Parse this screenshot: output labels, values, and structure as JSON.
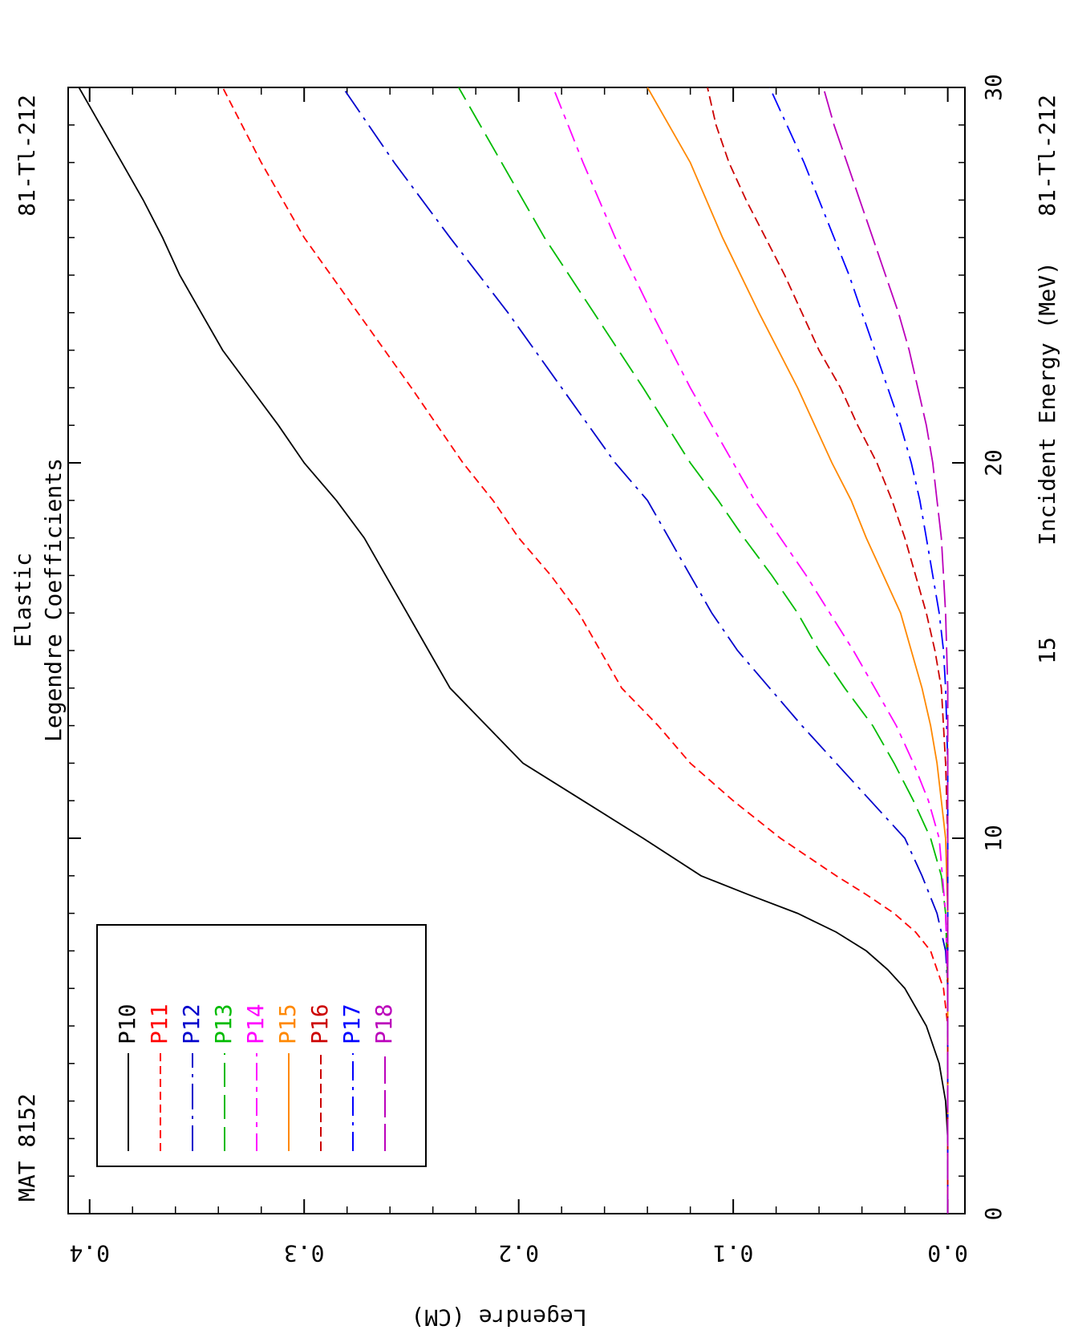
{
  "header": {
    "mat": "MAT 8152",
    "title_line1": "Elastic",
    "title_line2": "Legendre Coefficients",
    "id_left": "81-Tl-212",
    "id_right": "81-Tl-212"
  },
  "chart_data": {
    "type": "line",
    "xlabel": "Incident Energy (MeV)",
    "ylabel": "Legendre (CM)",
    "xlim": [
      0,
      30
    ],
    "ylim": [
      -0.008,
      0.41
    ],
    "x_ticks": [
      0,
      10,
      20,
      30
    ],
    "x_tick_labels": [
      "0",
      "10",
      "20",
      "30"
    ],
    "x_ticks_minor": [
      15
    ],
    "x_ticks_minor_labels": [
      "15"
    ],
    "y_ticks": [
      0.0,
      0.1,
      0.2,
      0.3,
      0.4
    ],
    "y_tick_labels": [
      "0.0",
      "0.1",
      "0.2",
      "0.3",
      "0.4"
    ],
    "grid": false,
    "legend_position": "lower-left",
    "series": [
      {
        "name": "P10",
        "color": "#000000",
        "dash": "none",
        "x": [
          0,
          2,
          3,
          4,
          5,
          6,
          6.5,
          7,
          7.5,
          8,
          8.5,
          9,
          10,
          11,
          12,
          13,
          14,
          15,
          16,
          17,
          18,
          19,
          20,
          21,
          22,
          23,
          24,
          25,
          26,
          27,
          28,
          29,
          30
        ],
        "y": [
          0.0,
          0.0,
          0.001,
          0.004,
          0.01,
          0.02,
          0.028,
          0.038,
          0.052,
          0.07,
          0.093,
          0.115,
          0.142,
          0.17,
          0.198,
          0.215,
          0.232,
          0.242,
          0.252,
          0.262,
          0.272,
          0.285,
          0.3,
          0.312,
          0.325,
          0.338,
          0.348,
          0.358,
          0.366,
          0.375,
          0.385,
          0.395,
          0.405
        ]
      },
      {
        "name": "P11",
        "color": "#ff0000",
        "dash": "10,6",
        "x": [
          0,
          3,
          5,
          6,
          7,
          7.5,
          8,
          8.5,
          9,
          10,
          11,
          12,
          13,
          14,
          15,
          16,
          17,
          18,
          19,
          20,
          22,
          24,
          26,
          28,
          30
        ],
        "y": [
          0.0,
          0.0,
          0.0,
          0.002,
          0.008,
          0.015,
          0.025,
          0.038,
          0.052,
          0.078,
          0.1,
          0.12,
          0.135,
          0.152,
          0.162,
          0.172,
          0.185,
          0.2,
          0.212,
          0.226,
          0.25,
          0.275,
          0.3,
          0.32,
          0.338
        ]
      },
      {
        "name": "P12",
        "color": "#0000cc",
        "dash": "32,8,4,8",
        "x": [
          0,
          3,
          6,
          7,
          8,
          9,
          10,
          11,
          12,
          13,
          14,
          15,
          16,
          17,
          18,
          19,
          20,
          22,
          24,
          26,
          28,
          30
        ],
        "y": [
          0.0,
          0.0,
          0.0,
          0.001,
          0.005,
          0.012,
          0.02,
          0.036,
          0.052,
          0.068,
          0.083,
          0.098,
          0.11,
          0.12,
          0.13,
          0.14,
          0.155,
          0.18,
          0.205,
          0.232,
          0.258,
          0.282
        ]
      },
      {
        "name": "P13",
        "color": "#00bb00",
        "dash": "30,10",
        "x": [
          0,
          6,
          8,
          9,
          10,
          11,
          12,
          13,
          14,
          15,
          16,
          17,
          18,
          19,
          20,
          22,
          24,
          26,
          28,
          30
        ],
        "y": [
          0.0,
          0.0,
          0.001,
          0.003,
          0.008,
          0.016,
          0.025,
          0.035,
          0.048,
          0.06,
          0.07,
          0.082,
          0.095,
          0.107,
          0.12,
          0.142,
          0.165,
          0.188,
          0.208,
          0.228
        ]
      },
      {
        "name": "P14",
        "color": "#ff00ff",
        "dash": "22,8,6,8",
        "x": [
          0,
          6,
          8,
          10,
          11,
          12,
          13,
          14,
          15,
          16,
          17,
          18,
          19,
          20,
          22,
          24,
          26,
          28,
          30
        ],
        "y": [
          0.0,
          0.0,
          0.001,
          0.004,
          0.009,
          0.016,
          0.024,
          0.034,
          0.044,
          0.055,
          0.066,
          0.078,
          0.09,
          0.1,
          0.12,
          0.138,
          0.155,
          0.17,
          0.184
        ]
      },
      {
        "name": "P15",
        "color": "#ff8800",
        "dash": "none",
        "x": [
          0,
          8,
          10,
          11,
          12,
          13,
          14,
          15,
          16,
          17,
          18,
          19,
          20,
          22,
          24,
          26,
          28,
          30
        ],
        "y": [
          0.0,
          0.0,
          0.001,
          0.003,
          0.005,
          0.008,
          0.012,
          0.017,
          0.022,
          0.03,
          0.038,
          0.045,
          0.054,
          0.07,
          0.088,
          0.105,
          0.12,
          0.14
        ]
      },
      {
        "name": "P16",
        "color": "#cc0000",
        "dash": "12,6",
        "x": [
          0,
          10,
          12,
          14,
          15,
          16,
          17,
          18,
          19,
          20,
          21,
          22,
          23,
          24,
          25,
          26,
          27,
          28,
          29,
          30
        ],
        "y": [
          0.0,
          0.0,
          0.001,
          0.003,
          0.006,
          0.01,
          0.015,
          0.02,
          0.026,
          0.033,
          0.042,
          0.05,
          0.06,
          0.068,
          0.076,
          0.085,
          0.094,
          0.102,
          0.108,
          0.112
        ]
      },
      {
        "name": "P17",
        "color": "#0000ff",
        "dash": "24,8,4,8",
        "x": [
          0,
          12,
          14,
          15,
          16,
          17,
          18,
          19,
          20,
          21,
          22,
          23,
          24,
          25,
          26,
          27,
          28,
          29,
          30
        ],
        "y": [
          0.0,
          0.0,
          0.001,
          0.002,
          0.004,
          0.007,
          0.01,
          0.013,
          0.017,
          0.022,
          0.028,
          0.034,
          0.04,
          0.046,
          0.053,
          0.06,
          0.067,
          0.075,
          0.083
        ]
      },
      {
        "name": "P18",
        "color": "#bb00bb",
        "dash": "34,8",
        "x": [
          0,
          14,
          16,
          17,
          18,
          19,
          20,
          21,
          22,
          23,
          24,
          25,
          26,
          27,
          28,
          29,
          30
        ],
        "y": [
          0.0,
          0.0,
          0.001,
          0.002,
          0.003,
          0.005,
          0.007,
          0.01,
          0.014,
          0.018,
          0.023,
          0.029,
          0.035,
          0.041,
          0.047,
          0.053,
          0.058
        ]
      }
    ]
  }
}
